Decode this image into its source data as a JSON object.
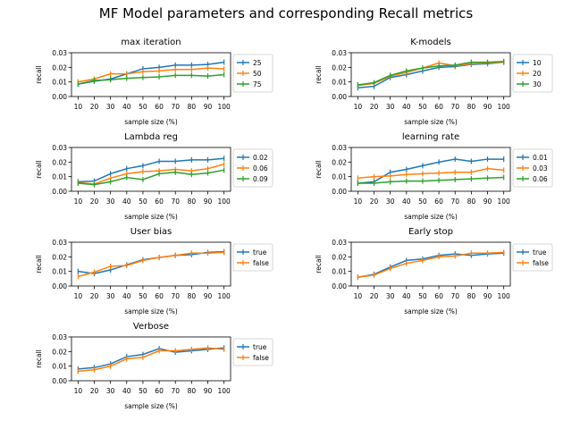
{
  "figure_title": "MF Model parameters and corresponding Recall metrics",
  "colors": {
    "blue": "#1f77b4",
    "orange": "#ff7f0e",
    "green": "#2ca02c"
  },
  "chart_data": [
    {
      "type": "line",
      "title": "max iteration",
      "xlabel": "sample size (%)",
      "ylabel": "recall",
      "x": [
        10,
        20,
        30,
        40,
        50,
        60,
        70,
        80,
        90,
        100
      ],
      "xticks": [
        "10",
        "20",
        "30",
        "40",
        "50",
        "60",
        "70",
        "80",
        "90",
        "100"
      ],
      "ylim": [
        0,
        0.03
      ],
      "yticks": [
        "0.00",
        "0.01",
        "0.02",
        "0.03"
      ],
      "legend_position": "outside-right",
      "grid": false,
      "series": [
        {
          "name": "25",
          "color": "#1f77b4",
          "values": [
            0.0085,
            0.0105,
            0.012,
            0.0155,
            0.019,
            0.02,
            0.0215,
            0.0215,
            0.022,
            0.0235
          ]
        },
        {
          "name": "50",
          "color": "#ff7f0e",
          "values": [
            0.01,
            0.012,
            0.0155,
            0.0155,
            0.017,
            0.0175,
            0.0185,
            0.0185,
            0.0195,
            0.019
          ]
        },
        {
          "name": "75",
          "color": "#2ca02c",
          "values": [
            0.0085,
            0.011,
            0.0115,
            0.0125,
            0.013,
            0.0135,
            0.0145,
            0.0145,
            0.014,
            0.015
          ]
        }
      ]
    },
    {
      "type": "line",
      "title": "K-models",
      "xlabel": "sample size (%)",
      "ylabel": "recall",
      "x": [
        10,
        20,
        30,
        40,
        50,
        60,
        70,
        80,
        90,
        100
      ],
      "xticks": [
        "10",
        "20",
        "30",
        "40",
        "50",
        "60",
        "70",
        "80",
        "90",
        "100"
      ],
      "ylim": [
        0,
        0.03
      ],
      "yticks": [
        "0.00",
        "0.01",
        "0.02",
        "0.03"
      ],
      "legend_position": "outside-right",
      "grid": false,
      "series": [
        {
          "name": "10",
          "color": "#1f77b4",
          "values": [
            0.006,
            0.007,
            0.013,
            0.015,
            0.0175,
            0.02,
            0.0205,
            0.022,
            0.0225,
            0.0235
          ]
        },
        {
          "name": "20",
          "color": "#ff7f0e",
          "values": [
            0.0075,
            0.009,
            0.014,
            0.0165,
            0.0195,
            0.023,
            0.021,
            0.0225,
            0.023,
            0.0235
          ]
        },
        {
          "name": "30",
          "color": "#2ca02c",
          "values": [
            0.008,
            0.0095,
            0.0145,
            0.0175,
            0.0195,
            0.021,
            0.0215,
            0.0235,
            0.0235,
            0.024
          ]
        }
      ]
    },
    {
      "type": "line",
      "title": "Lambda reg",
      "xlabel": "sample size (%)",
      "ylabel": "recall",
      "x": [
        10,
        20,
        30,
        40,
        50,
        60,
        70,
        80,
        90,
        100
      ],
      "xticks": [
        "10",
        "20",
        "30",
        "40",
        "50",
        "60",
        "70",
        "80",
        "90",
        "100"
      ],
      "ylim": [
        0,
        0.03
      ],
      "yticks": [
        "0.00",
        "0.01",
        "0.02",
        "0.03"
      ],
      "legend_position": "outside-right",
      "grid": false,
      "series": [
        {
          "name": "0.02",
          "color": "#1f77b4",
          "values": [
            0.0065,
            0.007,
            0.012,
            0.0155,
            0.0175,
            0.0205,
            0.0205,
            0.0215,
            0.0215,
            0.0225
          ]
        },
        {
          "name": "0.06",
          "color": "#ff7f0e",
          "values": [
            0.006,
            0.005,
            0.009,
            0.012,
            0.0135,
            0.014,
            0.015,
            0.014,
            0.0155,
            0.0185
          ]
        },
        {
          "name": "0.09",
          "color": "#2ca02c",
          "values": [
            0.0055,
            0.0045,
            0.0065,
            0.0095,
            0.008,
            0.012,
            0.013,
            0.0115,
            0.0125,
            0.0145
          ]
        }
      ]
    },
    {
      "type": "line",
      "title": "learning rate",
      "xlabel": "sample size (%)",
      "ylabel": "recall",
      "x": [
        10,
        20,
        30,
        40,
        50,
        60,
        70,
        80,
        90,
        100
      ],
      "xticks": [
        "10",
        "20",
        "30",
        "40",
        "50",
        "60",
        "70",
        "80",
        "90",
        "100"
      ],
      "ylim": [
        0,
        0.03
      ],
      "yticks": [
        "0.00",
        "0.01",
        "0.02",
        "0.03"
      ],
      "legend_position": "outside-right",
      "grid": false,
      "series": [
        {
          "name": "0.01",
          "color": "#1f77b4",
          "values": [
            0.0055,
            0.0065,
            0.013,
            0.015,
            0.0175,
            0.02,
            0.022,
            0.0205,
            0.022,
            0.022
          ]
        },
        {
          "name": "0.03",
          "color": "#ff7f0e",
          "values": [
            0.009,
            0.01,
            0.0105,
            0.0115,
            0.012,
            0.0125,
            0.013,
            0.013,
            0.0155,
            0.0145
          ]
        },
        {
          "name": "0.06",
          "color": "#2ca02c",
          "values": [
            0.0055,
            0.0055,
            0.0065,
            0.007,
            0.007,
            0.0075,
            0.008,
            0.0085,
            0.009,
            0.0095
          ]
        }
      ]
    },
    {
      "type": "line",
      "title": "User bias",
      "xlabel": "sample size (%)",
      "ylabel": "recall",
      "x": [
        10,
        20,
        30,
        40,
        50,
        60,
        70,
        80,
        90,
        100
      ],
      "xticks": [
        "10",
        "20",
        "30",
        "40",
        "50",
        "60",
        "70",
        "80",
        "90",
        "100"
      ],
      "ylim": [
        0,
        0.03
      ],
      "yticks": [
        "0.00",
        "0.01",
        "0.02",
        "0.03"
      ],
      "legend_position": "outside-right",
      "grid": false,
      "series": [
        {
          "name": "true",
          "color": "#1f77b4",
          "values": [
            0.01,
            0.0085,
            0.011,
            0.0145,
            0.018,
            0.0195,
            0.021,
            0.0215,
            0.023,
            0.0235
          ]
        },
        {
          "name": "false",
          "color": "#ff7f0e",
          "values": [
            0.0065,
            0.0095,
            0.0135,
            0.014,
            0.0175,
            0.0195,
            0.021,
            0.0225,
            0.0225,
            0.023
          ]
        }
      ]
    },
    {
      "type": "line",
      "title": "Early stop",
      "xlabel": "sample size (%)",
      "ylabel": "recall",
      "x": [
        10,
        20,
        30,
        40,
        50,
        60,
        70,
        80,
        90,
        100
      ],
      "xticks": [
        "10",
        "20",
        "30",
        "40",
        "50",
        "60",
        "70",
        "80",
        "90",
        "100"
      ],
      "ylim": [
        0,
        0.03
      ],
      "yticks": [
        "0.00",
        "0.01",
        "0.02",
        "0.03"
      ],
      "legend_position": "outside-right",
      "grid": false,
      "series": [
        {
          "name": "true",
          "color": "#1f77b4",
          "values": [
            0.006,
            0.008,
            0.013,
            0.0175,
            0.0185,
            0.021,
            0.022,
            0.021,
            0.022,
            0.0225
          ]
        },
        {
          "name": "false",
          "color": "#ff7f0e",
          "values": [
            0.006,
            0.0075,
            0.012,
            0.0155,
            0.0175,
            0.02,
            0.0205,
            0.0225,
            0.0225,
            0.023
          ]
        }
      ]
    },
    {
      "type": "line",
      "title": "Verbose",
      "xlabel": "sample size (%)",
      "ylabel": "recall",
      "x": [
        10,
        20,
        30,
        40,
        50,
        60,
        70,
        80,
        90,
        100
      ],
      "xticks": [
        "10",
        "20",
        "30",
        "40",
        "50",
        "60",
        "70",
        "80",
        "90",
        "100"
      ],
      "ylim": [
        0,
        0.03
      ],
      "yticks": [
        "0.00",
        "0.01",
        "0.02",
        "0.03"
      ],
      "legend_position": "outside-right",
      "grid": false,
      "series": [
        {
          "name": "true",
          "color": "#1f77b4",
          "values": [
            0.008,
            0.009,
            0.0115,
            0.0165,
            0.018,
            0.022,
            0.0195,
            0.0205,
            0.0215,
            0.0225
          ]
        },
        {
          "name": "false",
          "color": "#ff7f0e",
          "values": [
            0.0065,
            0.0075,
            0.01,
            0.015,
            0.016,
            0.0205,
            0.0205,
            0.0215,
            0.0225,
            0.0215
          ]
        }
      ]
    }
  ]
}
